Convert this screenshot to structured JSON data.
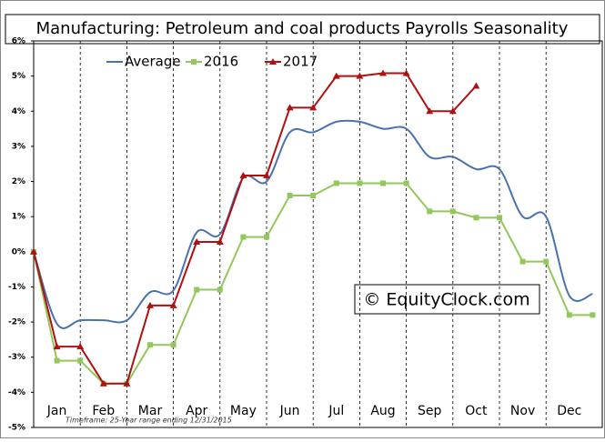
{
  "chart_data": {
    "type": "line",
    "title": "Manufacturing: Petroleum and coal products Payrolls Seasonality",
    "categories": [
      null,
      "Jan",
      null,
      "Feb",
      null,
      "Mar",
      null,
      "Apr",
      null,
      "May",
      null,
      "Jun",
      null,
      "Jul",
      null,
      "Aug",
      null,
      "Sep",
      null,
      "Oct",
      null,
      "Nov",
      null,
      "Dec",
      null
    ],
    "series": [
      {
        "name": "Average",
        "color": "#4a72b0",
        "smooth": true,
        "values": [
          0,
          -2.05,
          -1.95,
          -1.95,
          -1.95,
          -1.15,
          -1.1,
          0.55,
          0.5,
          2.1,
          2.0,
          3.4,
          3.4,
          3.7,
          3.7,
          3.5,
          3.5,
          2.7,
          2.7,
          2.35,
          2.35,
          1.0,
          1.0,
          -1.25,
          -1.2
        ]
      },
      {
        "name": "2016",
        "color": "#92c85a",
        "marker": "square",
        "values": [
          0,
          -3.1,
          -3.1,
          -3.75,
          -3.75,
          -2.65,
          -2.65,
          -1.08,
          -1.08,
          0.42,
          0.42,
          1.6,
          1.6,
          1.95,
          1.95,
          1.95,
          1.95,
          1.15,
          1.15,
          0.97,
          0.97,
          -0.28,
          -0.28,
          -1.8,
          -1.8
        ]
      },
      {
        "name": "2017",
        "color": "#b01010",
        "marker": "triangle",
        "values": [
          0,
          -2.7,
          -2.7,
          -3.75,
          -3.75,
          -1.53,
          -1.53,
          0.28,
          0.28,
          2.17,
          2.17,
          4.1,
          4.1,
          5.0,
          5.0,
          5.08,
          5.08,
          4.0,
          4.0,
          4.72,
          null,
          null,
          null,
          null,
          null
        ]
      }
    ],
    "ylim": [
      -5,
      6
    ],
    "yticks": [
      {
        "value": 6,
        "label": "6%"
      },
      {
        "value": 5,
        "label": "5%"
      },
      {
        "value": 4,
        "label": "4%"
      },
      {
        "value": 3,
        "label": "3%"
      },
      {
        "value": 2,
        "label": "2%"
      },
      {
        "value": 1,
        "label": "1%"
      },
      {
        "value": 0,
        "label": "0%"
      },
      {
        "value": -1,
        "label": "-1%"
      },
      {
        "value": -2,
        "label": "-2%"
      },
      {
        "value": -3,
        "label": "-3%"
      },
      {
        "value": -4,
        "label": "-4%"
      },
      {
        "value": -5,
        "label": "-5%"
      }
    ],
    "watermark": "© EquityClock.com",
    "footnote": "Timeframe: 25-Year range ending 12/31/2015",
    "legend": "top"
  }
}
